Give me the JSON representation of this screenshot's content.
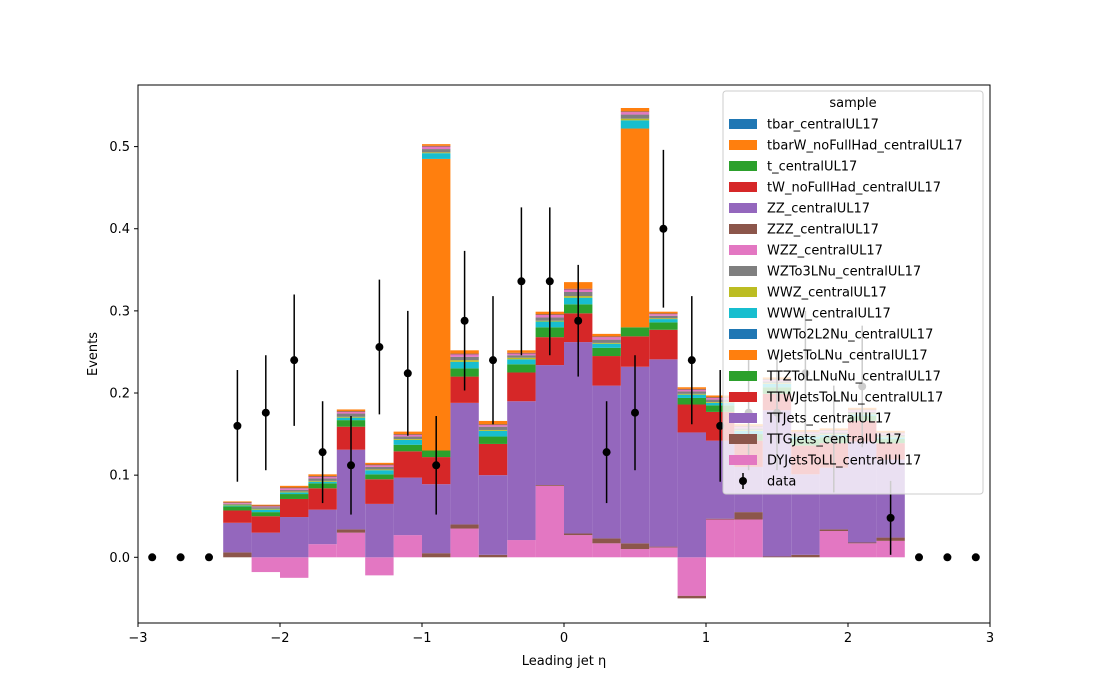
{
  "chart_data": {
    "type": "bar",
    "title": "",
    "xlabel": "Leading jet  η",
    "ylabel": "Events",
    "xlim": [
      -3,
      3
    ],
    "ylim": [
      -0.08,
      0.575
    ],
    "xticks": [
      -3,
      -2,
      -1,
      0,
      1,
      2,
      3
    ],
    "xtick_labels": [
      "−3",
      "−2",
      "−1",
      "0",
      "1",
      "2",
      "3"
    ],
    "yticks": [
      0.0,
      0.1,
      0.2,
      0.3,
      0.4,
      0.5
    ],
    "ytick_labels": [
      "0.0",
      "0.1",
      "0.2",
      "0.3",
      "0.4",
      "0.5"
    ],
    "grid": false,
    "legend_title": "sample",
    "legend_position": "top-right",
    "bin_edges": [
      -2.4,
      -2.2,
      -2.0,
      -1.8,
      -1.6,
      -1.4,
      -1.2,
      -1.0,
      -0.8,
      -0.6,
      -0.4,
      -0.2,
      0.0,
      0.2,
      0.4,
      0.6,
      0.8,
      1.0,
      1.2,
      1.4,
      1.6,
      1.8,
      2.0,
      2.2,
      2.4
    ],
    "series": [
      {
        "name": "DYJetsToLL_centralUL17",
        "color": "#e377c2",
        "values": [
          0.0,
          -0.018,
          -0.025,
          0.016,
          0.03,
          -0.022,
          0.027,
          0.0,
          0.035,
          0.0,
          0.021,
          0.087,
          0.027,
          0.017,
          0.01,
          0.012,
          -0.047,
          0.046,
          0.046,
          0.0,
          0.0,
          0.032,
          0.017,
          0.02
        ]
      },
      {
        "name": "TTGJets_centralUL17",
        "color": "#8c564b",
        "values": [
          0.006,
          0.0,
          0.0,
          0.0,
          0.004,
          0.0,
          0.0,
          0.005,
          0.005,
          0.003,
          0.0,
          0.001,
          0.002,
          0.006,
          0.007,
          0.001,
          -0.003,
          0.001,
          0.009,
          0.001,
          0.003,
          0.002,
          0.001,
          0.004
        ]
      },
      {
        "name": "TTJets_centralUL17",
        "color": "#9467bd",
        "values": [
          0.036,
          0.03,
          0.049,
          0.042,
          0.097,
          0.065,
          0.07,
          0.084,
          0.148,
          0.097,
          0.169,
          0.146,
          0.233,
          0.186,
          0.215,
          0.228,
          0.152,
          0.095,
          0.055,
          0.178,
          0.098,
          0.075,
          0.123,
          0.095
        ]
      },
      {
        "name": "TTWJetsToLNu_centralUL17",
        "color": "#d62728",
        "values": [
          0.015,
          0.02,
          0.022,
          0.026,
          0.028,
          0.03,
          0.032,
          0.033,
          0.032,
          0.038,
          0.035,
          0.034,
          0.035,
          0.036,
          0.037,
          0.036,
          0.034,
          0.035,
          0.032,
          0.02,
          0.035,
          0.03,
          0.025,
          0.02
        ]
      },
      {
        "name": "TTZToLLNuNu_centralUL17",
        "color": "#2ca02c",
        "values": [
          0.005,
          0.005,
          0.006,
          0.006,
          0.008,
          0.006,
          0.008,
          0.008,
          0.01,
          0.009,
          0.01,
          0.012,
          0.011,
          0.01,
          0.011,
          0.009,
          0.008,
          0.008,
          0.008,
          0.008,
          0.008,
          0.007,
          0.006,
          0.005
        ]
      },
      {
        "name": "WJetsToLNu_centralUL17",
        "color": "#ff7f0e",
        "values": [
          0.0,
          0.0,
          0.0,
          0.0,
          0.0,
          0.0,
          0.0,
          0.355,
          0.0,
          0.0,
          0.0,
          0.0,
          0.0,
          0.0,
          0.242,
          0.0,
          0.0,
          0.0,
          0.0,
          0.0,
          0.0,
          0.0,
          0.0,
          0.0
        ]
      },
      {
        "name": "WWTo2L2Nu_centralUL17",
        "color": "#1f77b4",
        "values": [
          0.0,
          0.0,
          0.0,
          0.0,
          0.0,
          0.0,
          0.0,
          0.0,
          0.0,
          0.0,
          0.0,
          0.0,
          0.0,
          0.0,
          0.0,
          0.0,
          0.0,
          0.0,
          0.0,
          0.0,
          0.0,
          0.0,
          0.0,
          0.0
        ]
      },
      {
        "name": "WWW_centralUL17",
        "color": "#17becf",
        "values": [
          0.001,
          0.003,
          0.002,
          0.002,
          0.003,
          0.005,
          0.006,
          0.007,
          0.008,
          0.007,
          0.006,
          0.007,
          0.008,
          0.005,
          0.01,
          0.004,
          0.004,
          0.003,
          0.004,
          0.004,
          0.003,
          0.003,
          0.002,
          0.002
        ]
      },
      {
        "name": "WWZ_centralUL17",
        "color": "#bcbd22",
        "values": [
          0.001,
          0.001,
          0.001,
          0.001,
          0.001,
          0.001,
          0.001,
          0.001,
          0.002,
          0.001,
          0.002,
          0.001,
          0.002,
          0.001,
          0.002,
          0.001,
          0.001,
          0.001,
          0.001,
          0.001,
          0.001,
          0.001,
          0.001,
          0.001
        ]
      },
      {
        "name": "WZTo3LNu_centralUL17",
        "color": "#7f7f7f",
        "values": [
          0.001,
          0.002,
          0.002,
          0.003,
          0.004,
          0.003,
          0.003,
          0.004,
          0.004,
          0.004,
          0.003,
          0.004,
          0.005,
          0.004,
          0.005,
          0.003,
          0.003,
          0.003,
          0.002,
          0.002,
          0.002,
          0.002,
          0.002,
          0.002
        ]
      },
      {
        "name": "WZZ_centralUL17",
        "color": "#e377c2",
        "values": [
          0.001,
          0.001,
          0.002,
          0.002,
          0.002,
          0.002,
          0.002,
          0.003,
          0.003,
          0.002,
          0.002,
          0.003,
          0.003,
          0.003,
          0.003,
          0.002,
          0.002,
          0.002,
          0.002,
          0.002,
          0.002,
          0.002,
          0.002,
          0.002
        ]
      },
      {
        "name": "ZZZ_centralUL17",
        "color": "#8c564b",
        "values": [
          0.001,
          0.001,
          0.001,
          0.001,
          0.001,
          0.001,
          0.001,
          0.001,
          0.001,
          0.001,
          0.001,
          0.001,
          0.001,
          0.001,
          0.001,
          0.001,
          0.001,
          0.001,
          0.001,
          0.001,
          0.001,
          0.001,
          0.001,
          0.001
        ]
      },
      {
        "name": "ZZ_centralUL17",
        "color": "#9467bd",
        "values": [
          0.0,
          0.0,
          0.0,
          0.0,
          0.0,
          0.0,
          0.0,
          0.0,
          0.0,
          0.0,
          0.0,
          0.0,
          0.0,
          0.0,
          0.0,
          0.0,
          0.0,
          0.0,
          0.0,
          0.0,
          0.0,
          0.0,
          0.0,
          0.0
        ]
      },
      {
        "name": "tW_noFullHad_centralUL17",
        "color": "#d62728",
        "values": [
          0.0,
          0.0,
          0.0,
          0.0,
          0.0,
          0.0,
          0.0,
          0.0,
          0.0,
          0.0,
          0.0,
          0.0,
          0.0,
          0.0,
          0.0,
          0.0,
          0.0,
          0.0,
          0.0,
          0.0,
          0.0,
          0.0,
          0.0,
          0.0
        ]
      },
      {
        "name": "t_centralUL17",
        "color": "#2ca02c",
        "values": [
          0.0,
          0.0,
          0.0,
          0.0,
          0.0,
          0.0,
          0.0,
          0.0,
          0.0,
          0.0,
          0.0,
          0.0,
          0.0,
          0.0,
          0.0,
          0.0,
          0.0,
          0.0,
          0.0,
          0.0,
          0.0,
          0.0,
          0.0,
          0.0
        ]
      },
      {
        "name": "tbarW_noFullHad_centralUL17",
        "color": "#ff7f0e",
        "values": [
          0.001,
          0.001,
          0.002,
          0.002,
          0.002,
          0.002,
          0.003,
          0.002,
          0.004,
          0.004,
          0.003,
          0.003,
          0.008,
          0.003,
          0.004,
          0.002,
          0.002,
          0.002,
          0.002,
          0.002,
          0.002,
          0.002,
          0.002,
          0.002
        ]
      },
      {
        "name": "tbar_centralUL17",
        "color": "#1f77b4",
        "values": [
          0.0,
          0.0,
          0.0,
          0.0,
          0.0,
          0.0,
          0.0,
          0.0,
          0.0,
          0.0,
          0.0,
          0.0,
          0.0,
          0.0,
          0.0,
          0.0,
          0.0,
          0.0,
          0.0,
          0.0,
          0.0,
          0.0,
          0.0,
          0.0
        ]
      }
    ],
    "data_points": {
      "name": "data",
      "color": "#000000",
      "x": [
        -2.9,
        -2.7,
        -2.5,
        -2.3,
        -2.1,
        -1.9,
        -1.7,
        -1.5,
        -1.3,
        -1.1,
        -0.9,
        -0.7,
        -0.5,
        -0.3,
        -0.1,
        0.1,
        0.3,
        0.5,
        0.7,
        0.9,
        1.1,
        1.3,
        1.5,
        1.7,
        1.9,
        2.1,
        2.3,
        2.5,
        2.7,
        2.9
      ],
      "y": [
        0.0,
        0.0,
        0.0,
        0.16,
        0.176,
        0.24,
        0.128,
        0.112,
        0.256,
        0.224,
        0.112,
        0.288,
        0.24,
        0.336,
        0.336,
        0.288,
        0.128,
        0.176,
        0.4,
        0.24,
        0.16,
        0.176,
        0.176,
        0.224,
        0.144,
        0.208,
        0.048,
        0.0,
        0.0,
        0.0
      ],
      "yerr": [
        0.0,
        0.0,
        0.0,
        0.068,
        0.07,
        0.08,
        0.062,
        0.06,
        0.082,
        0.076,
        0.06,
        0.085,
        0.078,
        0.09,
        0.09,
        0.068,
        0.062,
        0.07,
        0.096,
        0.078,
        0.068,
        0.07,
        0.07,
        0.076,
        0.065,
        0.074,
        0.045,
        0.0,
        0.0,
        0.0
      ]
    },
    "legend_order": [
      "tbar_centralUL17",
      "tbarW_noFullHad_centralUL17",
      "t_centralUL17",
      "tW_noFullHad_centralUL17",
      "ZZ_centralUL17",
      "ZZZ_centralUL17",
      "WZZ_centralUL17",
      "WZTo3LNu_centralUL17",
      "WWZ_centralUL17",
      "WWW_centralUL17",
      "WWTo2L2Nu_centralUL17",
      "WJetsToLNu_centralUL17",
      "TTZToLLNuNu_centralUL17",
      "TTWJetsToLNu_centralUL17",
      "TTJets_centralUL17",
      "TTGJets_centralUL17",
      "DYJetsToLL_centralUL17",
      "data"
    ]
  }
}
